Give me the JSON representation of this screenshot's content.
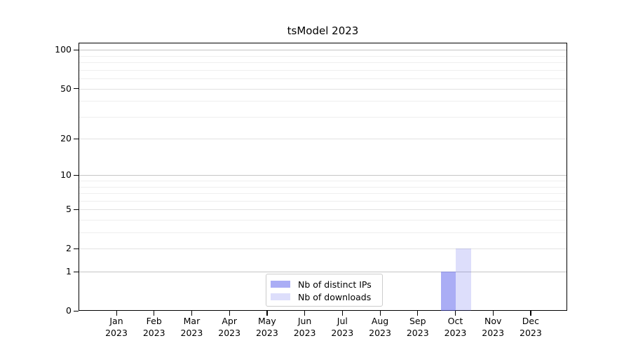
{
  "chart_data": {
    "type": "bar",
    "title": "tsModel 2023",
    "categories": [
      "Jan 2023",
      "Feb 2023",
      "Mar 2023",
      "Apr 2023",
      "May 2023",
      "Jun 2023",
      "Jul 2023",
      "Aug 2023",
      "Sep 2023",
      "Oct 2023",
      "Nov 2023",
      "Dec 2023"
    ],
    "series": [
      {
        "name": "Nb of distinct IPs",
        "values": [
          0,
          0,
          0,
          0,
          0,
          0,
          0,
          0,
          0,
          1,
          0,
          0
        ],
        "fill": "rgba(86,92,235,0.5)",
        "color_over_white": "#abaef7"
      },
      {
        "name": "Nb of downloads",
        "values": [
          0,
          0,
          0,
          0,
          0,
          0,
          0,
          0,
          0,
          2,
          0,
          0
        ],
        "fill": "rgba(86,92,235,0.2)",
        "color_over_white": "#dcdefb"
      }
    ],
    "xlabel": "",
    "ylabel": "",
    "yscale": "log1p",
    "ylim": [
      0,
      113
    ],
    "y_ticks": [
      0,
      1,
      2,
      5,
      10,
      20,
      50,
      100
    ],
    "y_gridlines_major": [
      1,
      10,
      100
    ],
    "y_gridlines_sub": [
      2,
      5,
      20,
      50
    ],
    "y_gridlines_minor": [
      3,
      4,
      6,
      7,
      8,
      9,
      30,
      40,
      60,
      70,
      80,
      90
    ],
    "grid": true,
    "legend_position": "lower center"
  },
  "style": {
    "background": "#ffffff",
    "spine": "#000000",
    "text": "#000000",
    "grid_major": "#c5c5c5",
    "grid_sub": "#e2e2e2",
    "grid_minor": "#efefef",
    "legend_border": "#cccccc"
  }
}
